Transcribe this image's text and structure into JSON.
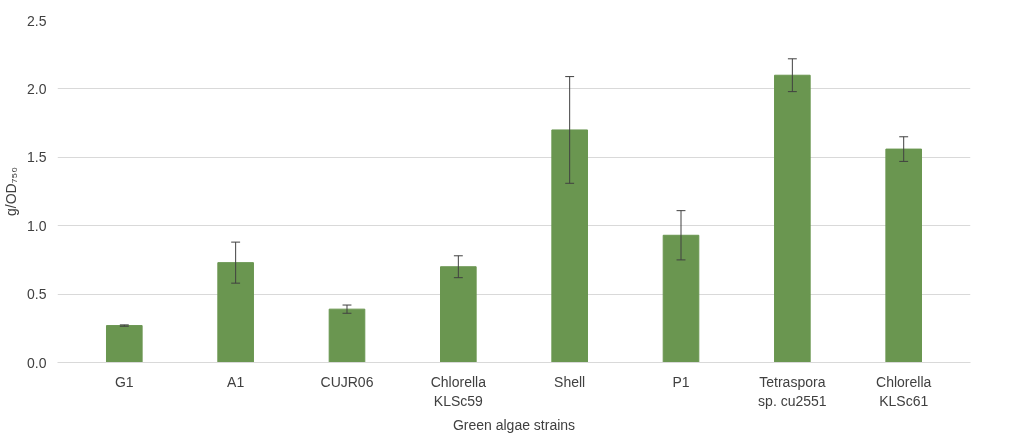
{
  "chart_data": {
    "type": "bar",
    "xlabel": "Green algae strains",
    "ylabel": "g/OD₇₅₀",
    "categories": [
      "G1",
      "A1",
      "CUJR06",
      "Chlorella KLSc59",
      "Shell",
      "P1",
      "Tetraspora sp. cu2551",
      "Chlorella KLSc61"
    ],
    "values": [
      0.27,
      0.73,
      0.39,
      0.7,
      1.7,
      0.93,
      2.1,
      1.56
    ],
    "errors": [
      0.005,
      0.15,
      0.03,
      0.08,
      0.39,
      0.18,
      0.12,
      0.09
    ],
    "color": "#6a9650",
    "ylim": [
      0,
      2.5
    ],
    "yticks": [
      {
        "value": 0,
        "label": "0.0"
      },
      {
        "value": 0.5,
        "label": "0.5"
      },
      {
        "value": 1,
        "label": "1.0"
      },
      {
        "value": 1.5,
        "label": "1.5"
      },
      {
        "value": 2,
        "label": "2.0"
      },
      {
        "value": 2.5,
        "label": "2.5"
      }
    ],
    "grid": "y"
  }
}
